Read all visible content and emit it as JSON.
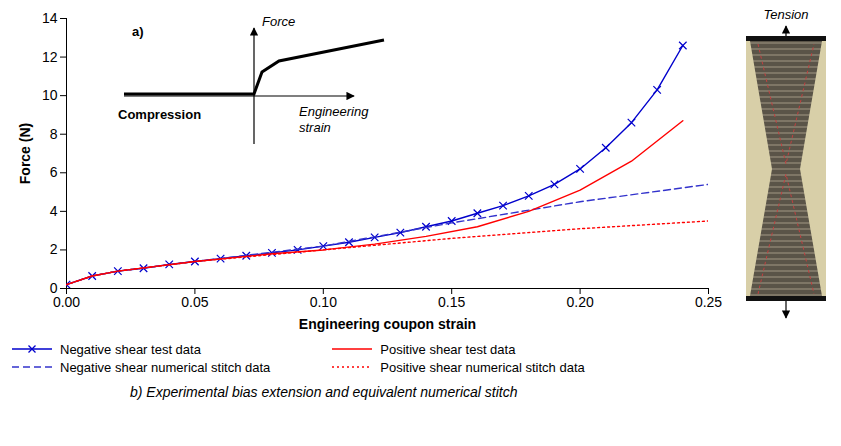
{
  "chart_data": {
    "type": "line",
    "x_label": "Engineering coupon strain",
    "y_label": "Force (N)",
    "xlim": [
      0,
      0.25
    ],
    "ylim": [
      0,
      14
    ],
    "xticks": [
      {
        "value": 0,
        "label": "0.00"
      },
      {
        "value": 0.05,
        "label": "0.05"
      },
      {
        "value": 0.1,
        "label": "0.10"
      },
      {
        "value": 0.15,
        "label": "0.15"
      },
      {
        "value": 0.2,
        "label": "0.20"
      },
      {
        "value": 0.25,
        "label": "0.25"
      }
    ],
    "yticks": [
      0,
      2,
      4,
      6,
      8,
      10,
      12,
      14
    ],
    "grid": false,
    "legend": "bottom",
    "series": [
      {
        "name": "Negative shear test data",
        "color": "#0000cc",
        "marker": "x",
        "line_style": "solid",
        "x": [
          0,
          0.01,
          0.02,
          0.03,
          0.04,
          0.05,
          0.06,
          0.07,
          0.08,
          0.09,
          0.1,
          0.11,
          0.12,
          0.13,
          0.14,
          0.15,
          0.16,
          0.17,
          0.18,
          0.19,
          0.2,
          0.21,
          0.22,
          0.23,
          0.24
        ],
        "values": [
          0.2,
          0.65,
          0.9,
          1.05,
          1.25,
          1.4,
          1.55,
          1.7,
          1.85,
          2.0,
          2.2,
          2.4,
          2.65,
          2.9,
          3.2,
          3.5,
          3.9,
          4.3,
          4.8,
          5.4,
          6.2,
          7.3,
          8.6,
          10.3,
          12.6
        ]
      },
      {
        "name": "Negative shear numerical stitch data",
        "color": "#3333cc",
        "line_style": "dashed",
        "x": [
          0,
          0.01,
          0.02,
          0.05,
          0.1,
          0.15,
          0.2,
          0.25
        ],
        "values": [
          0.2,
          0.65,
          0.9,
          1.4,
          2.2,
          3.4,
          4.5,
          5.4
        ]
      },
      {
        "name": "Positive shear test data",
        "color": "#ff0000",
        "line_style": "solid",
        "x": [
          0,
          0.01,
          0.02,
          0.05,
          0.08,
          0.1,
          0.12,
          0.14,
          0.16,
          0.18,
          0.2,
          0.22,
          0.24
        ],
        "values": [
          0.2,
          0.65,
          0.9,
          1.4,
          1.8,
          2.0,
          2.3,
          2.7,
          3.2,
          4.0,
          5.1,
          6.6,
          8.7
        ]
      },
      {
        "name": "Positive shear numerical stitch data",
        "color": "#ff0000",
        "line_style": "dotted",
        "x": [
          0,
          0.01,
          0.02,
          0.05,
          0.1,
          0.15,
          0.2,
          0.25
        ],
        "values": [
          0.2,
          0.65,
          0.9,
          1.4,
          2.0,
          2.6,
          3.1,
          3.5
        ]
      }
    ],
    "inset": {
      "label": "a)",
      "y_label": "Force",
      "x_label": "Engineering strain",
      "left_label": "Compression"
    },
    "side_image_label": "Tension",
    "caption": "b) Experimental bias extension and equivalent numerical stitch"
  }
}
